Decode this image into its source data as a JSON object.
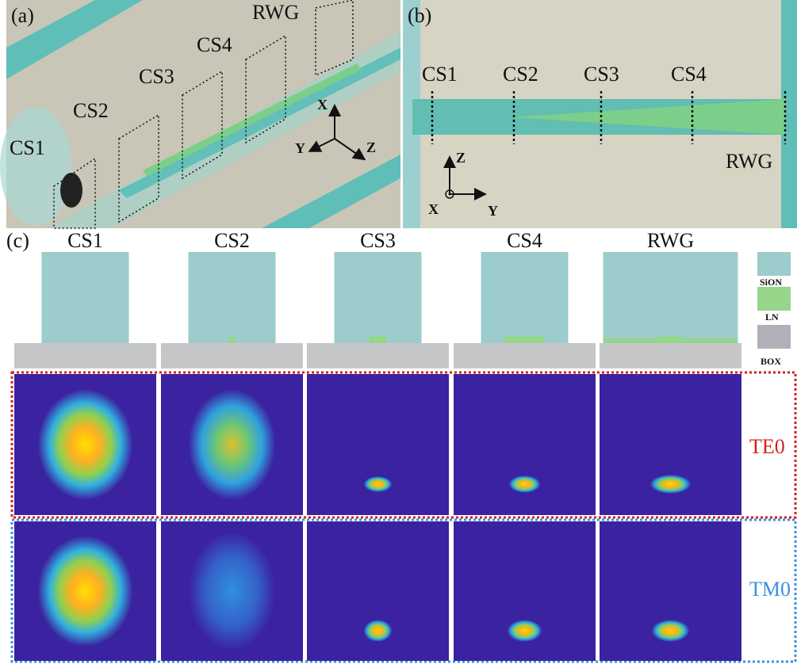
{
  "panel_a": {
    "label": "(a)",
    "sections": [
      "CS1",
      "CS2",
      "CS3",
      "CS4",
      "RWG"
    ],
    "axes": [
      "X",
      "Y",
      "Z"
    ]
  },
  "panel_b": {
    "label": "(b)",
    "sections": [
      "CS1",
      "CS2",
      "CS3",
      "CS4",
      "RWG"
    ],
    "axes": [
      "Z",
      "X",
      "Y"
    ]
  },
  "panel_c": {
    "label": "(c)",
    "columns": [
      "CS1",
      "CS2",
      "CS3",
      "CS4",
      "RWG"
    ],
    "legend": [
      "SiON",
      "LN",
      "BOX"
    ],
    "modes": [
      "TE0",
      "TM0"
    ]
  }
}
